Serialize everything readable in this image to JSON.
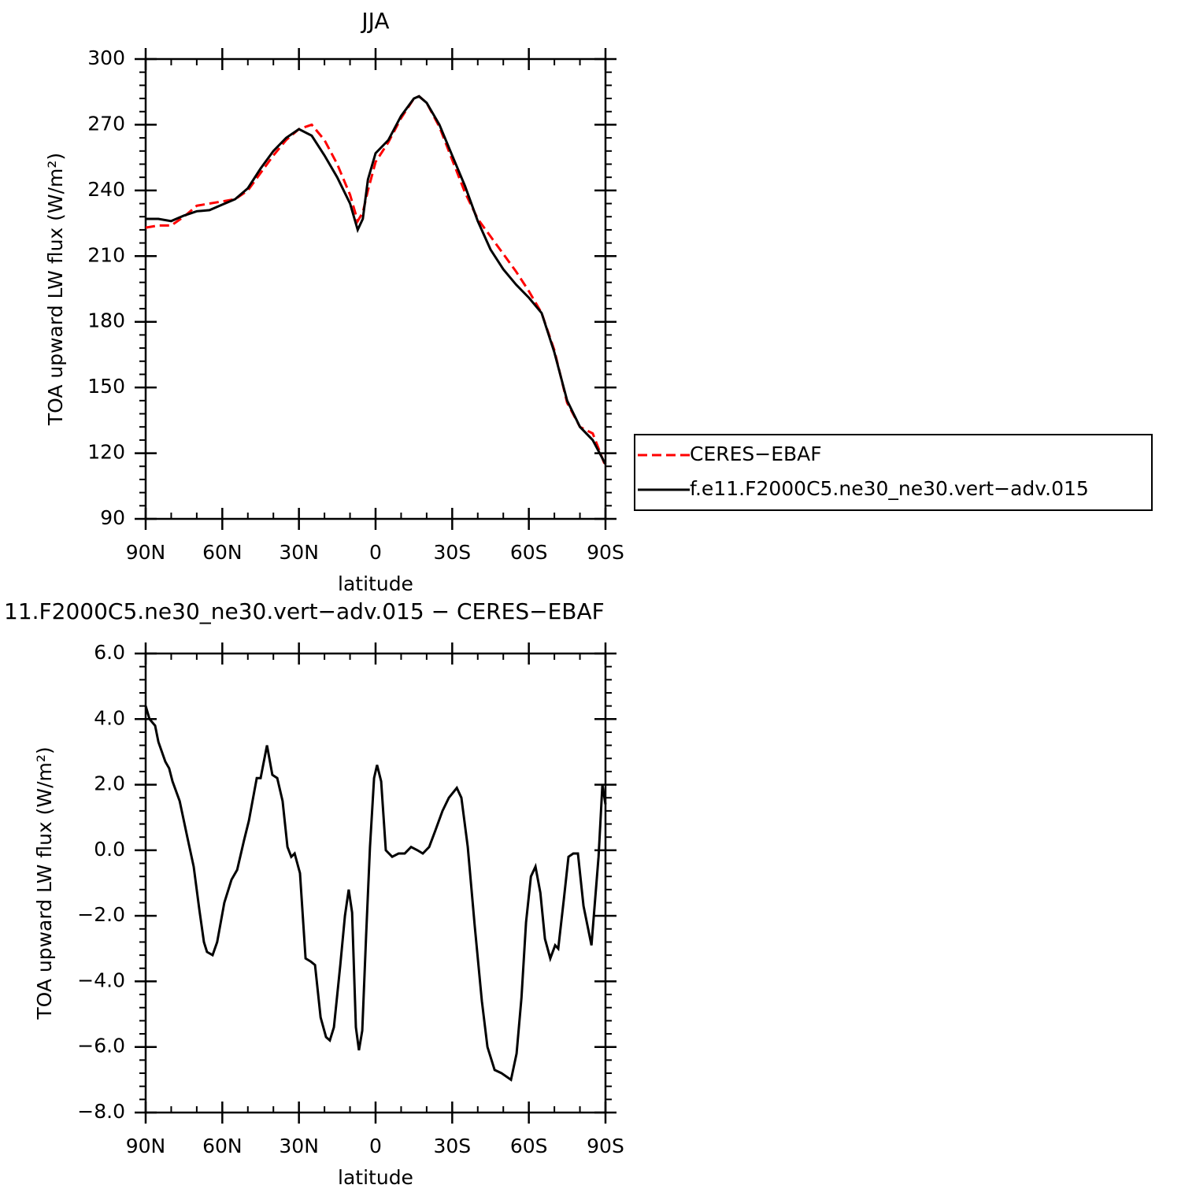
{
  "chart_data": [
    {
      "type": "line",
      "title": "JJA",
      "x_label": "latitude",
      "y_label": "TOA upward LW flux (W/m²)",
      "xlim": [
        90,
        -90
      ],
      "xticks": [
        {
          "value": 90,
          "label": "90N"
        },
        {
          "value": 60,
          "label": "60N"
        },
        {
          "value": 30,
          "label": "30N"
        },
        0,
        {
          "value": -30,
          "label": "30S"
        },
        {
          "value": -60,
          "label": "60S"
        },
        {
          "value": -90,
          "label": "90S"
        }
      ],
      "ylim": [
        90,
        300
      ],
      "yticks": [
        90,
        120,
        150,
        180,
        210,
        240,
        270,
        300
      ],
      "legend": "right",
      "x": [
        90,
        85,
        80,
        75,
        70,
        65,
        60,
        55,
        50,
        45,
        40,
        35,
        30,
        25,
        20,
        15,
        10,
        7,
        5,
        3,
        0,
        -5,
        -10,
        -15,
        -17,
        -20,
        -25,
        -30,
        -35,
        -40,
        -45,
        -50,
        -55,
        -60,
        -65,
        -70,
        -75,
        -80,
        -85,
        -90
      ],
      "series": [
        {
          "name": "CERES−EBAF",
          "color": "#ff0000",
          "dashed": true,
          "values": [
            223,
            224,
            224,
            228,
            233,
            234,
            235,
            236,
            240,
            248,
            256,
            263,
            268,
            270,
            263,
            252,
            238,
            226,
            230,
            240,
            253,
            262,
            273,
            282,
            283,
            280,
            269,
            254,
            239,
            227,
            219,
            211,
            203,
            194,
            184,
            167,
            143,
            132,
            129,
            114
          ]
        },
        {
          "name": "f.e11.F2000C5.ne30_ne30.vert−adv.015",
          "color": "#000000",
          "dashed": false,
          "values": [
            227,
            227,
            226,
            228.5,
            230.5,
            231,
            233.5,
            236,
            241,
            250,
            258,
            264,
            268,
            265,
            256,
            246,
            234,
            222,
            227,
            245,
            257,
            263,
            274,
            282,
            283,
            280,
            270,
            256,
            242,
            226,
            213,
            204,
            197,
            191,
            184,
            166,
            144,
            132,
            126,
            115
          ]
        }
      ]
    },
    {
      "type": "line",
      "title": "11.F2000C5.ne30_ne30.vert−adv.015 − CERES−EBAF",
      "x_label": "latitude",
      "y_label": "TOA upward LW flux (W/m²)",
      "xlim": [
        90,
        -90
      ],
      "xticks": [
        {
          "value": 90,
          "label": "90N"
        },
        {
          "value": 60,
          "label": "60N"
        },
        {
          "value": 30,
          "label": "30N"
        },
        0,
        {
          "value": -30,
          "label": "30S"
        },
        {
          "value": -60,
          "label": "60S"
        },
        {
          "value": -90,
          "label": "90S"
        }
      ],
      "ylim": [
        -8,
        6
      ],
      "yticks": [
        {
          "value": -8,
          "label": "−8.0"
        },
        {
          "value": -6,
          "label": "−6.0"
        },
        {
          "value": -4,
          "label": "−4.0"
        },
        {
          "value": -2,
          "label": "−2.0"
        },
        {
          "value": 0,
          "label": "0.0"
        },
        {
          "value": 2,
          "label": "2.0"
        },
        {
          "value": 4,
          "label": "4.0"
        },
        {
          "value": 6,
          "label": "6.0"
        }
      ],
      "color": "#000000",
      "x": [
        90,
        88.5,
        86.3,
        85,
        82.3,
        80.8,
        79.5,
        76.7,
        73.7,
        71.2,
        69,
        67.2,
        66,
        63.8,
        62,
        59.2,
        56.4,
        54.2,
        51.5,
        49.6,
        46.5,
        45,
        42.5,
        40.4,
        38.5,
        36.4,
        34.5,
        33,
        31.7,
        29.6,
        27.4,
        25.3,
        23.7,
        21.5,
        19.4,
        17.9,
        16.3,
        13.8,
        12,
        10.5,
        9.2,
        7.7,
        6.5,
        5.2,
        3.7,
        2.2,
        0.6,
        -0.6,
        -2.2,
        -4,
        -6.5,
        -9,
        -11.4,
        -13.9,
        -16.4,
        -18.5,
        -21,
        -23.4,
        -26.2,
        -28.7,
        -31.8,
        -33.6,
        -36.1,
        -38.8,
        -41.6,
        -43.8,
        -46.6,
        -49.3,
        -53,
        -55.2,
        -57.1,
        -58.9,
        -60.8,
        -62.6,
        -64.5,
        -66.3,
        -68.4,
        -70.3,
        -71.5,
        -73.7,
        -75.5,
        -77.4,
        -79.2,
        -81.4,
        -84.5,
        -87.3,
        -88.8,
        -90
      ],
      "values": [
        4.4,
        4.0,
        3.8,
        3.3,
        2.7,
        2.5,
        2.1,
        1.5,
        0.4,
        -0.5,
        -1.8,
        -2.8,
        -3.1,
        -3.2,
        -2.8,
        -1.6,
        -0.9,
        -0.6,
        0.3,
        0.9,
        2.2,
        2.2,
        3.2,
        2.3,
        2.2,
        1.5,
        0.1,
        -0.2,
        -0.1,
        -0.7,
        -3.3,
        -3.4,
        -3.5,
        -5.1,
        -5.7,
        -5.8,
        -5.4,
        -3.5,
        -2.0,
        -1.2,
        -1.9,
        -5.4,
        -6.1,
        -5.5,
        -2.6,
        0.1,
        2.2,
        2.6,
        2.1,
        0.0,
        -0.2,
        -0.1,
        -0.1,
        0.1,
        0.0,
        -0.1,
        0.1,
        0.6,
        1.2,
        1.6,
        1.9,
        1.6,
        0.1,
        -2.3,
        -4.6,
        -6.0,
        -6.7,
        -6.8,
        -7.0,
        -6.2,
        -4.5,
        -2.2,
        -0.8,
        -0.5,
        -1.3,
        -2.7,
        -3.3,
        -2.9,
        -3.0,
        -1.5,
        -0.2,
        -0.1,
        -0.1,
        -1.7,
        -2.9,
        -0.2,
        2.0,
        1.4
      ]
    }
  ]
}
